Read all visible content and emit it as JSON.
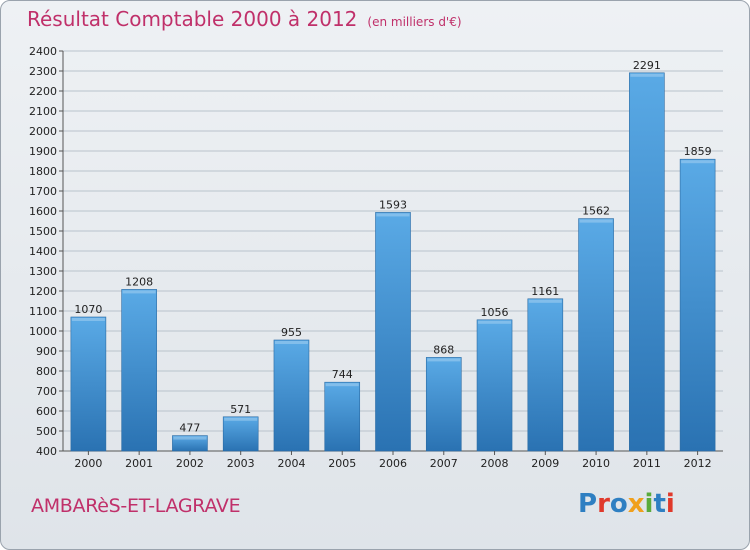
{
  "header": {
    "title": "Résultat Comptable 2000 à 2012",
    "unit": "(en milliers d'€)"
  },
  "footer": {
    "commune": "AMBARèS-ET-LAGRAVE",
    "logo_text": "Proxiti",
    "logo_colors": [
      "#2e7fc2",
      "#e0392b",
      "#2e7fc2",
      "#f0a01c",
      "#5aab3c",
      "#2e7fc2",
      "#e0392b"
    ]
  },
  "colors": {
    "title": "#c0306a",
    "bar_top": "#5aaae6",
    "bar_bottom": "#2a72b2",
    "grid": "#b9c3cc"
  },
  "chart_data": {
    "type": "bar",
    "title": "Résultat Comptable 2000 à 2012",
    "subtitle": "(en milliers d'€)",
    "categories": [
      "2000",
      "2001",
      "2002",
      "2003",
      "2004",
      "2005",
      "2006",
      "2007",
      "2008",
      "2009",
      "2010",
      "2011",
      "2012"
    ],
    "values": [
      1070,
      1208,
      477,
      571,
      955,
      744,
      1593,
      868,
      1056,
      1161,
      1562,
      2291,
      1859
    ],
    "ylim": [
      400,
      2400
    ],
    "ytick_step": 100,
    "grid": true,
    "xlabel": "",
    "ylabel": ""
  }
}
